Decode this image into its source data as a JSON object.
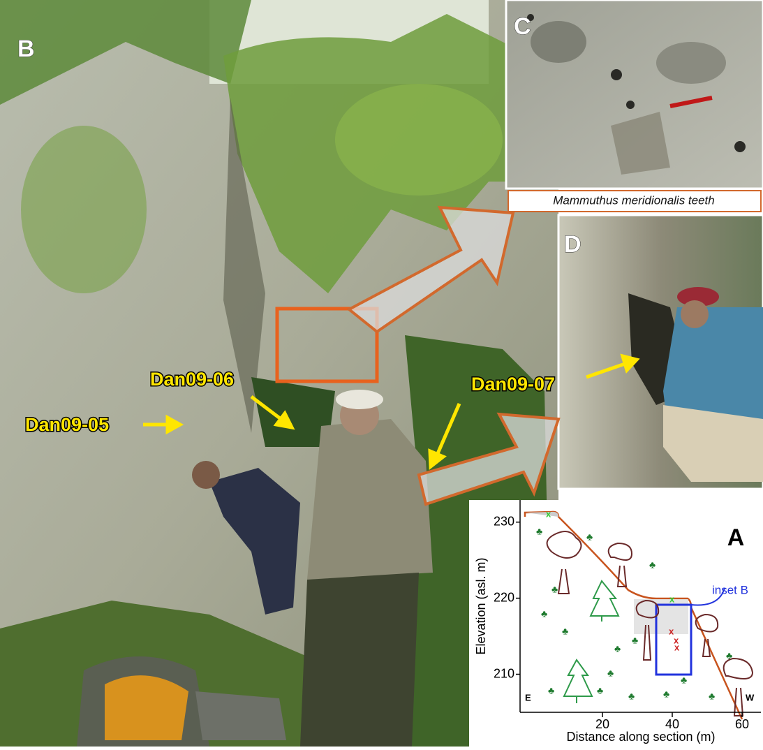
{
  "panels": {
    "B": "B",
    "C": "C",
    "D": "D",
    "A": "A"
  },
  "samples": [
    "Dan09-05",
    "Dan09-06",
    "Dan09-07"
  ],
  "caption": "Mammuthus meridionalis teeth",
  "profile": {
    "xlabel": "Distance along section (m)",
    "ylabel": "Elevation (asl. m)",
    "xlim": [
      -4,
      66
    ],
    "ylim": [
      205,
      233
    ],
    "xticks": [
      20,
      40,
      60
    ],
    "yticks": [
      210,
      220,
      230
    ],
    "inset_label": "inset B",
    "east": "E",
    "west": "W"
  }
}
